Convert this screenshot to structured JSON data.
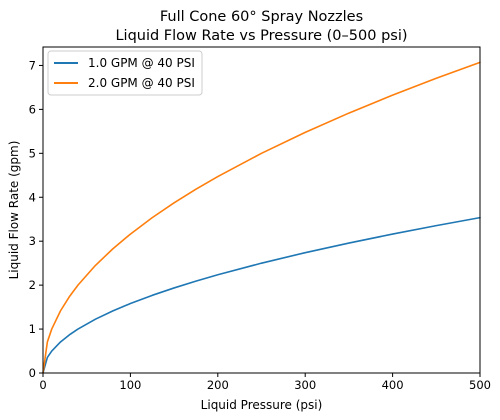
{
  "chart_data": {
    "type": "line",
    "title_line1": "Full Cone 60° Spray Nozzles",
    "title_line2": "Liquid Flow Rate vs Pressure (0–500 psi)",
    "xlabel": "Liquid Pressure (psi)",
    "ylabel": "Liquid Flow Rate (gpm)",
    "xlim": [
      0,
      500
    ],
    "ylim": [
      0,
      7.42
    ],
    "x_ticks": [
      0,
      100,
      200,
      300,
      400,
      500
    ],
    "y_ticks": [
      0,
      1,
      2,
      3,
      4,
      5,
      6,
      7
    ],
    "grid": false,
    "legend_position": "upper-left",
    "x": [
      0,
      5,
      10,
      20,
      30,
      40,
      60,
      80,
      100,
      125,
      150,
      175,
      200,
      250,
      300,
      350,
      400,
      450,
      500
    ],
    "series": [
      {
        "name": "1.0 GPM @ 40 PSI",
        "color": "#1f77b4",
        "values": [
          0,
          0.354,
          0.5,
          0.707,
          0.866,
          1.0,
          1.225,
          1.414,
          1.581,
          1.768,
          1.936,
          2.092,
          2.236,
          2.5,
          2.739,
          2.958,
          3.162,
          3.354,
          3.536
        ]
      },
      {
        "name": "2.0 GPM @ 40 PSI",
        "color": "#ff7f0e",
        "values": [
          0,
          0.707,
          1.0,
          1.414,
          1.732,
          2.0,
          2.449,
          2.828,
          3.162,
          3.536,
          3.873,
          4.183,
          4.472,
          5.0,
          5.477,
          5.916,
          6.325,
          6.708,
          7.071
        ]
      }
    ]
  }
}
